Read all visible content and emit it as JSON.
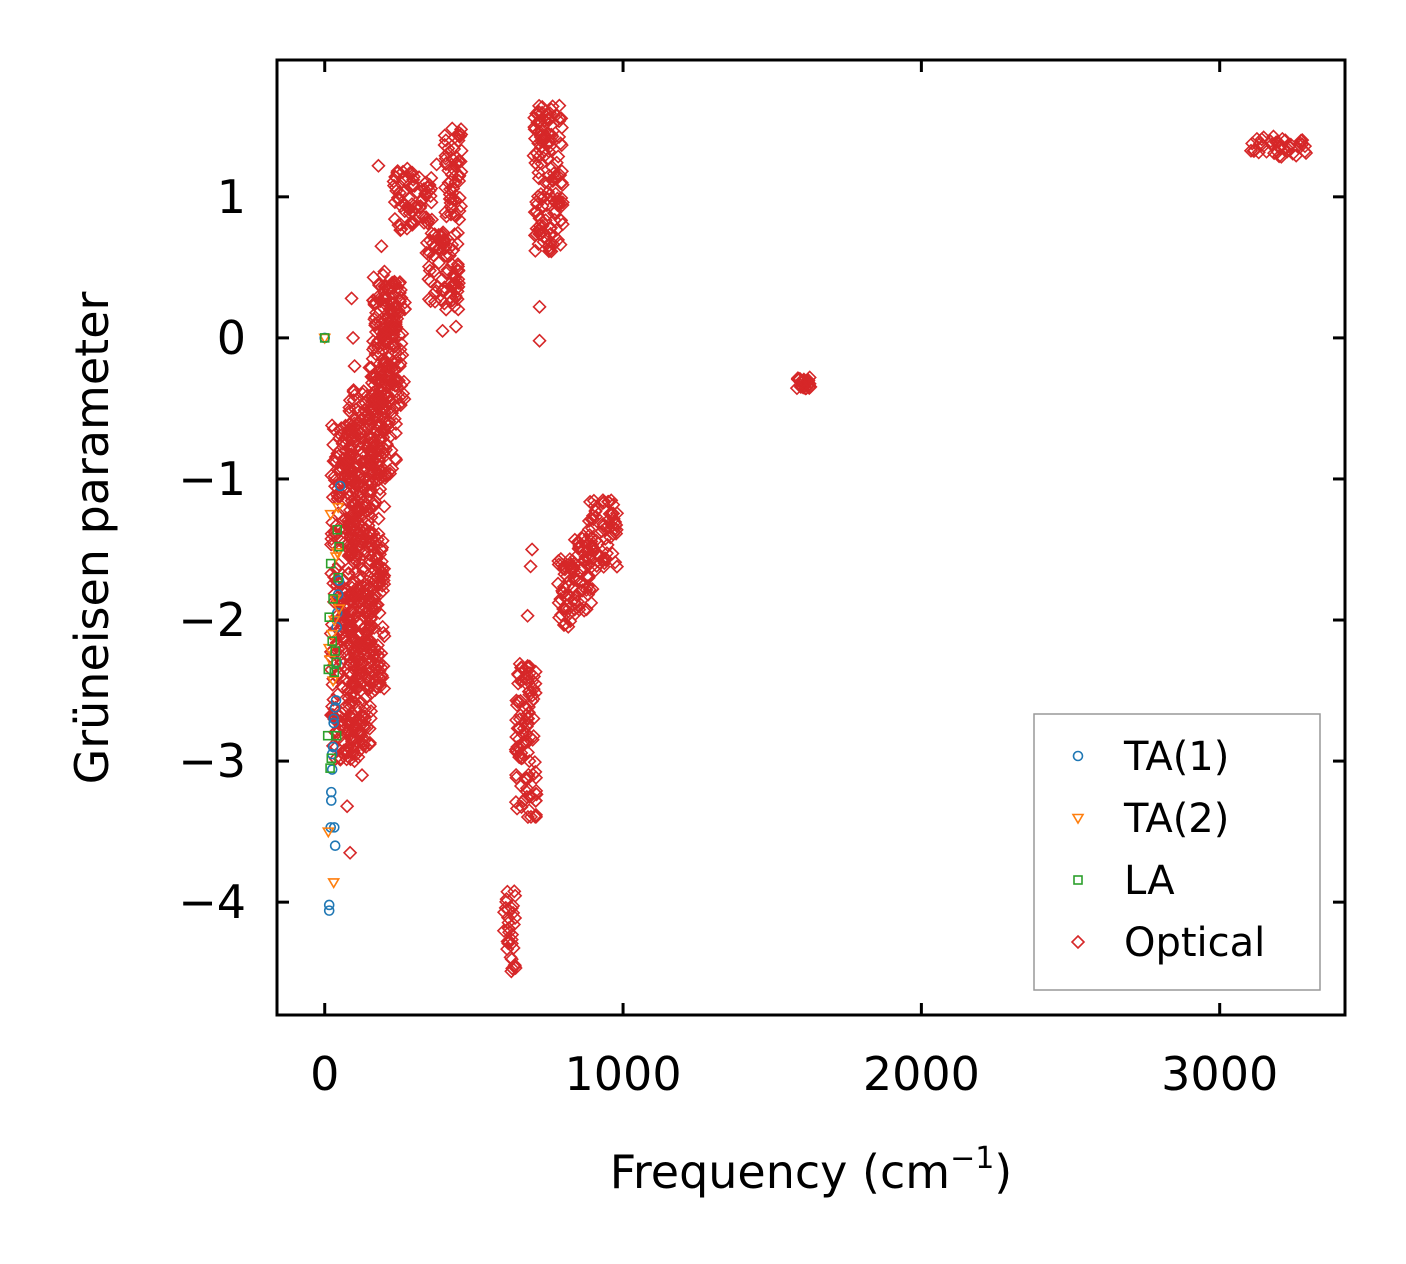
{
  "chart_data": {
    "type": "scatter",
    "title": "",
    "xlabel": "Frequency (cm",
    "xlabel_sup": "−1",
    "xlabel_suffix": ")",
    "ylabel": "Grüneisen parameter",
    "xlim": [
      -160,
      3420
    ],
    "ylim": [
      -4.8,
      1.97
    ],
    "xticks": [
      0,
      1000,
      2000,
      3000
    ],
    "xtick_labels": [
      "0",
      "1000",
      "2000",
      "3000"
    ],
    "yticks": [
      1,
      0,
      -1,
      -2,
      -3,
      -4
    ],
    "ytick_labels": [
      "1",
      "0",
      "−1",
      "−2",
      "−3",
      "−4"
    ],
    "grid": false,
    "legend_position": "bottom-right",
    "series": [
      {
        "name": "TA(1)",
        "marker": "circle",
        "color": "#1f77b4",
        "points": [
          [
            0,
            0
          ],
          [
            15,
            -4.02
          ],
          [
            15,
            -4.06
          ],
          [
            20,
            -3.47
          ],
          [
            22,
            -3.28
          ],
          [
            22,
            -3.22
          ],
          [
            25,
            -3.06
          ],
          [
            25,
            -2.95
          ],
          [
            28,
            -2.9
          ],
          [
            30,
            -2.73
          ],
          [
            30,
            -2.7
          ],
          [
            32,
            -3.47
          ],
          [
            35,
            -3.6
          ],
          [
            35,
            -2.62
          ],
          [
            38,
            -2.57
          ],
          [
            40,
            -2.3
          ],
          [
            40,
            -2.05
          ],
          [
            42,
            -1.95
          ],
          [
            45,
            -1.82
          ],
          [
            48,
            -1.72
          ],
          [
            52,
            -1.05
          ]
        ]
      },
      {
        "name": "TA(2)",
        "marker": "triangle-down",
        "color": "#ff7f0e",
        "points": [
          [
            0,
            0
          ],
          [
            12,
            -3.5
          ],
          [
            15,
            -2.2
          ],
          [
            18,
            -2.28
          ],
          [
            20,
            -1.25
          ],
          [
            25,
            -2.1
          ],
          [
            28,
            -2.43
          ],
          [
            30,
            -3.86
          ],
          [
            32,
            -2.0
          ],
          [
            35,
            -1.85
          ],
          [
            38,
            -1.55
          ],
          [
            42,
            -1.52
          ],
          [
            45,
            -1.2
          ],
          [
            48,
            -1.92
          ]
        ]
      },
      {
        "name": "LA",
        "marker": "square",
        "color": "#2ca02c",
        "points": [
          [
            0,
            0
          ],
          [
            10,
            -2.82
          ],
          [
            12,
            -2.35
          ],
          [
            15,
            -1.98
          ],
          [
            18,
            -3.05
          ],
          [
            20,
            -1.6
          ],
          [
            22,
            -2.98
          ],
          [
            25,
            -2.15
          ],
          [
            28,
            -1.85
          ],
          [
            32,
            -2.37
          ],
          [
            35,
            -2.22
          ],
          [
            38,
            -2.3
          ],
          [
            40,
            -2.82
          ],
          [
            42,
            -1.36
          ],
          [
            45,
            -1.7
          ],
          [
            48,
            -1.48
          ]
        ]
      },
      {
        "name": "Optical",
        "marker": "diamond",
        "color": "#d62728",
        "clusters": [
          {
            "x": [
              20,
              120
            ],
            "y": [
              -3.0,
              -0.6
            ]
          },
          {
            "x": [
              80,
              160
            ],
            "y": [
              -2.9,
              -0.3
            ]
          },
          {
            "x": [
              140,
              200
            ],
            "y": [
              -2.5,
              -0.2
            ]
          },
          {
            "x": [
              160,
              240
            ],
            "y": [
              -1.0,
              0.45
            ]
          },
          {
            "x": [
              195,
              270
            ],
            "y": [
              -0.5,
              0.4
            ]
          },
          {
            "x": [
              230,
              300
            ],
            "y": [
              0.75,
              1.2
            ]
          },
          {
            "x": [
              290,
              360
            ],
            "y": [
              0.8,
              1.15
            ]
          },
          {
            "x": [
              340,
              450
            ],
            "y": [
              0.2,
              0.75
            ]
          },
          {
            "x": [
              400,
              460
            ],
            "y": [
              0.8,
              1.5
            ]
          },
          {
            "x": [
              600,
              640
            ],
            "y": [
              -4.5,
              -3.9
            ]
          },
          {
            "x": [
              640,
              710
            ],
            "y": [
              -3.4,
              -2.3
            ]
          },
          {
            "x": [
              700,
              800
            ],
            "y": [
              0.6,
              1.65
            ]
          },
          {
            "x": [
              780,
              840
            ],
            "y": [
              -2.05,
              -1.55
            ]
          },
          {
            "x": [
              830,
              900
            ],
            "y": [
              -1.95,
              -1.4
            ]
          },
          {
            "x": [
              880,
              980
            ],
            "y": [
              -1.65,
              -1.15
            ]
          },
          {
            "x": [
              1580,
              1630
            ],
            "y": [
              -0.36,
              -0.28
            ]
          },
          {
            "x": [
              3100,
              3290
            ],
            "y": [
              1.28,
              1.43
            ]
          }
        ],
        "outliers": [
          [
            180,
            1.22
          ],
          [
            190,
            0.65
          ],
          [
            375,
            1.23
          ],
          [
            200,
            0.47
          ],
          [
            90,
            0.28
          ],
          [
            95,
            0.0
          ],
          [
            100,
            -0.2
          ],
          [
            720,
            0.22
          ],
          [
            720,
            -0.02
          ],
          [
            695,
            -1.5
          ],
          [
            690,
            -1.62
          ],
          [
            680,
            -1.97
          ],
          [
            85,
            -3.65
          ],
          [
            75,
            -3.32
          ],
          [
            395,
            0.05
          ],
          [
            440,
            0.08
          ],
          [
            125,
            -3.1
          ],
          [
            100,
            -3.0
          ]
        ]
      }
    ]
  }
}
